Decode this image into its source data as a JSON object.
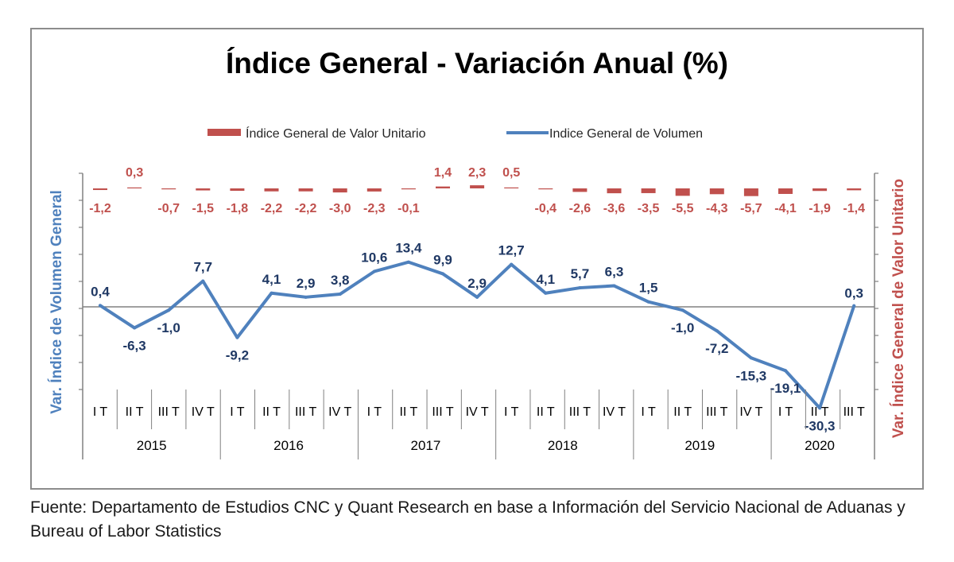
{
  "chart_data": {
    "type": "line",
    "title": "Índice General - Variación Anual (%)",
    "ylabel_left": "Var. Índice de Volumen General",
    "ylabel_right": "Var. Índice General de Valor Unitario",
    "legend_position": "top-center",
    "grid": false,
    "quarters": [
      "I T",
      "II T",
      "III T",
      "IV T",
      "I T",
      "II T",
      "III T",
      "IV T",
      "I T",
      "II T",
      "III T",
      "IV T",
      "I T",
      "II T",
      "III T",
      "IV T",
      "I T",
      "II T",
      "III T",
      "IV T",
      "I T",
      "II T",
      "III T"
    ],
    "years": [
      "2015",
      "2016",
      "2017",
      "2018",
      "2019",
      "2020"
    ],
    "ylim_volume": [
      -35,
      40
    ],
    "series": [
      {
        "name": "Índice General de Valor Unitario",
        "type": "bar",
        "axis": "right",
        "color": "#c0504d",
        "values": [
          -1.2,
          0.3,
          -0.7,
          -1.5,
          -1.8,
          -2.2,
          -2.2,
          -3.0,
          -2.3,
          -0.1,
          1.4,
          2.3,
          0.5,
          -0.4,
          -2.6,
          -3.6,
          -3.5,
          -5.5,
          -4.3,
          -5.7,
          -4.1,
          -1.9,
          -1.4
        ],
        "labels": [
          "-1,2",
          "0,3",
          "-0,7",
          "-1,5",
          "-1,8",
          "-2,2",
          "-2,2",
          "-3,0",
          "-2,3",
          "-0,1",
          "1,4",
          "2,3",
          "0,5",
          "-0,4",
          "-2,6",
          "-3,6",
          "-3,5",
          "-5,5",
          "-4,3",
          "-5,7",
          "-4,1",
          "-1,9",
          "-1,4"
        ]
      },
      {
        "name": "Indice General de Volumen",
        "type": "line",
        "axis": "left",
        "color": "#4f81bd",
        "values": [
          0.4,
          -6.3,
          -1.0,
          7.7,
          -9.2,
          4.1,
          2.9,
          3.8,
          10.6,
          13.4,
          9.9,
          2.9,
          12.7,
          4.1,
          5.7,
          6.3,
          1.5,
          -1.0,
          -7.2,
          -15.3,
          -19.1,
          -30.3,
          0.3
        ],
        "labels": [
          "0,4",
          "-6,3",
          "-1,0",
          "7,7",
          "-9,2",
          "4,1",
          "2,9",
          "3,8",
          "10,6",
          "13,4",
          "9,9",
          "2,9",
          "12,7",
          "4,1",
          "5,7",
          "6,3",
          "1,5",
          "-1,0",
          "-7,2",
          "-15,3",
          "-19,1",
          "-30,3",
          "0,3"
        ]
      }
    ],
    "colors": {
      "value_label": "#1f3864",
      "unit_label": "#c0504d",
      "axis": "#808080"
    }
  },
  "source_note": "Fuente: Departamento de Estudios CNC y Quant Research en base a Información del Servicio Nacional de Aduanas y Bureau of Labor Statistics"
}
